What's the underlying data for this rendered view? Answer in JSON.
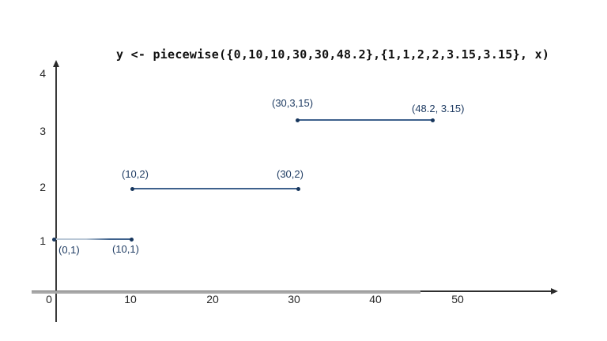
{
  "title": "y <- piecewise({0,10,10,30,30,48.2},{1,1,2,2,3.15,3.15}, x)",
  "axes": {
    "x_tick_labels": [
      "0",
      "10",
      "20",
      "30",
      "40",
      "50"
    ],
    "y_tick_labels": [
      "4",
      "3",
      "2",
      "1"
    ]
  },
  "chart_data": {
    "type": "line",
    "title": "y <- piecewise({0,10,10,30,30,48.2},{1,1,2,2,3.15,3.15}, x)",
    "description": "Piecewise-constant step function drawn as three horizontal segments with endpoint dots",
    "segments": [
      {
        "x": [
          0,
          10
        ],
        "y": 1,
        "start_label": "(0,1)",
        "end_label": "(10,1)"
      },
      {
        "x": [
          10,
          30
        ],
        "y": 2,
        "start_label": "(10,2)",
        "end_label": "(30,2)"
      },
      {
        "x": [
          30,
          48.2
        ],
        "y": 3.15,
        "start_label": "(30,3,15)",
        "end_label": "(48.2, 3.15)"
      }
    ],
    "x_ticks": [
      0,
      10,
      20,
      30,
      40,
      50
    ],
    "y_ticks": [
      1,
      2,
      3,
      4
    ],
    "xlim": [
      0,
      62
    ],
    "ylim": [
      0,
      4.3
    ],
    "grid": false,
    "legend": false
  },
  "colors": {
    "background": "#ffffff",
    "title_text": "#111111",
    "tick_text": "#262626",
    "point_label_text": "#1f3c63",
    "line": "#3e618c",
    "line_light": "#b9c7d6",
    "point": "#17365d",
    "axis_dark": "#2f2f2f",
    "axis_gray": "#a9a9a9"
  }
}
